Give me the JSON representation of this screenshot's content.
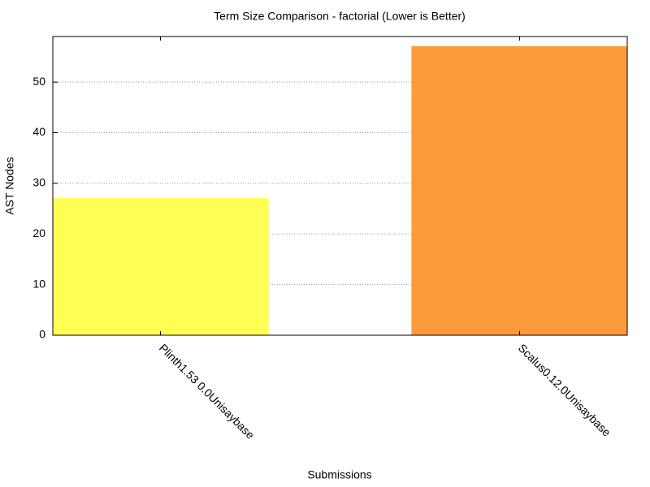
{
  "chart_data": {
    "type": "bar",
    "title": "Term Size Comparison - factorial (Lower is Better)",
    "x_label": "Submissions",
    "y_label": "AST Nodes",
    "categories": [
      "Plinth1.53 0.0Unisaybase",
      "Scalus0.12.0Unisaybase"
    ],
    "values": [
      27,
      57
    ],
    "colors": [
      "#ffff55",
      "#fd9a3a"
    ],
    "ylim": [
      0,
      59
    ],
    "yticks": [
      0,
      10,
      20,
      30,
      40,
      50
    ],
    "grid": true
  }
}
